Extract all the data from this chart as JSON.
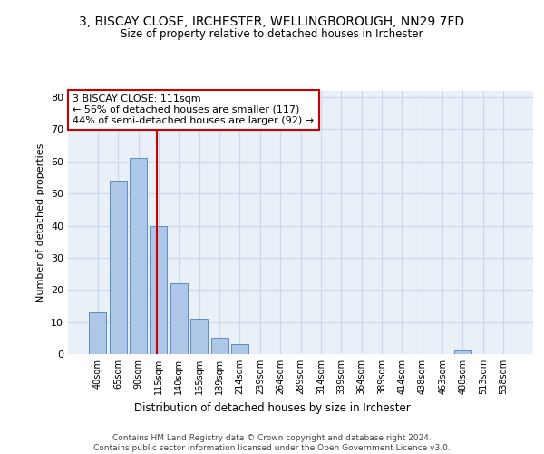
{
  "title1": "3, BISCAY CLOSE, IRCHESTER, WELLINGBOROUGH, NN29 7FD",
  "title2": "Size of property relative to detached houses in Irchester",
  "xlabel": "Distribution of detached houses by size in Irchester",
  "ylabel": "Number of detached properties",
  "categories": [
    "40sqm",
    "65sqm",
    "90sqm",
    "115sqm",
    "140sqm",
    "165sqm",
    "189sqm",
    "214sqm",
    "239sqm",
    "264sqm",
    "289sqm",
    "314sqm",
    "339sqm",
    "364sqm",
    "389sqm",
    "414sqm",
    "438sqm",
    "463sqm",
    "488sqm",
    "513sqm",
    "538sqm"
  ],
  "values": [
    13,
    54,
    61,
    40,
    22,
    11,
    5,
    3,
    0,
    0,
    0,
    0,
    0,
    0,
    0,
    0,
    0,
    0,
    1,
    0,
    0
  ],
  "bar_color": "#aec6e8",
  "bar_edge_color": "#5a8fc0",
  "vline_color": "#cc0000",
  "annotation_text": "3 BISCAY CLOSE: 111sqm\n← 56% of detached houses are smaller (117)\n44% of semi-detached houses are larger (92) →",
  "annotation_box_color": "#ffffff",
  "annotation_box_edge_color": "#cc0000",
  "ylim": [
    0,
    82
  ],
  "yticks": [
    0,
    10,
    20,
    30,
    40,
    50,
    60,
    70,
    80
  ],
  "grid_color": "#c8d8e8",
  "background_color": "#eaf0f8",
  "footer_text": "Contains HM Land Registry data © Crown copyright and database right 2024.\nContains public sector information licensed under the Open Government Licence v3.0."
}
